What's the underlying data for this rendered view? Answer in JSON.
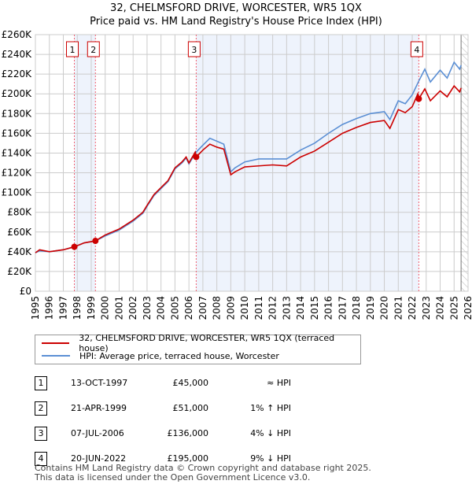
{
  "header": {
    "title": "32, CHELMSFORD DRIVE, WORCESTER, WR5 1QX",
    "subtitle": "Price paid vs. HM Land Registry's House Price Index (HPI)"
  },
  "chart_data": {
    "type": "line",
    "title": "32, CHELMSFORD DRIVE, WORCESTER, WR5 1QX",
    "subtitle": "Price paid vs. HM Land Registry's House Price Index (HPI)",
    "xlim": [
      1995,
      2026
    ],
    "ylim": [
      0,
      260000
    ],
    "grid": true,
    "x_ticks": [
      "1995",
      "1996",
      "1997",
      "1998",
      "1999",
      "2000",
      "2001",
      "2002",
      "2003",
      "2004",
      "2005",
      "2006",
      "2007",
      "2008",
      "2009",
      "2010",
      "2011",
      "2012",
      "2013",
      "2014",
      "2015",
      "2016",
      "2017",
      "2018",
      "2019",
      "2020",
      "2021",
      "2022",
      "2023",
      "2024",
      "2025",
      "2026"
    ],
    "y_ticks": [
      {
        "v": 0,
        "l": "£0"
      },
      {
        "v": 20000,
        "l": "£20K"
      },
      {
        "v": 40000,
        "l": "£40K"
      },
      {
        "v": 60000,
        "l": "£60K"
      },
      {
        "v": 80000,
        "l": "£80K"
      },
      {
        "v": 100000,
        "l": "£100K"
      },
      {
        "v": 120000,
        "l": "£120K"
      },
      {
        "v": 140000,
        "l": "£140K"
      },
      {
        "v": 160000,
        "l": "£160K"
      },
      {
        "v": 180000,
        "l": "£180K"
      },
      {
        "v": 200000,
        "l": "£200K"
      },
      {
        "v": 220000,
        "l": "£220K"
      },
      {
        "v": 240000,
        "l": "£240K"
      },
      {
        "v": 260000,
        "l": "£260K"
      }
    ],
    "series": [
      {
        "name": "32, CHELMSFORD DRIVE, WORCESTER, WR5 1QX (terraced house)",
        "color": "#cc0000",
        "x": [
          1995,
          1995.3,
          1996,
          1997,
          1997.79,
          1998.5,
          1999.3,
          2000,
          2001,
          2002,
          2002.7,
          2003,
          2003.5,
          2004,
          2004.5,
          2005,
          2005.5,
          2005.8,
          2006,
          2006.45,
          2006.52,
          2007,
          2007.5,
          2008,
          2008.5,
          2009,
          2009.3,
          2010,
          2011,
          2012,
          2013,
          2014,
          2015,
          2016,
          2017,
          2018,
          2019,
          2020,
          2020.4,
          2021,
          2021.5,
          2022,
          2022.4,
          2022.47,
          2022.9,
          2023.3,
          2024,
          2024.5,
          2025,
          2025.4,
          2025.5
        ],
        "y": [
          39000,
          42000,
          40000,
          42000,
          45000,
          49000,
          51000,
          57000,
          63000,
          72000,
          80000,
          87000,
          98000,
          105000,
          112000,
          125000,
          131000,
          136000,
          130000,
          141000,
          136000,
          143000,
          149000,
          146000,
          144000,
          118000,
          121000,
          126000,
          127000,
          128000,
          127000,
          136000,
          142000,
          151000,
          160000,
          166000,
          171000,
          173000,
          165000,
          184000,
          181000,
          187000,
          200000,
          195000,
          205000,
          193000,
          203000,
          197000,
          208000,
          202000,
          206000
        ]
      },
      {
        "name": "HPI: Average price, terraced house, Worcester",
        "color": "#5b8fd4",
        "x": [
          1995,
          1995.3,
          1996,
          1997,
          1997.79,
          1998.5,
          1999.3,
          2000,
          2001,
          2002,
          2002.7,
          2003,
          2003.5,
          2004,
          2004.5,
          2005,
          2005.5,
          2005.8,
          2006,
          2006.52,
          2007,
          2007.5,
          2008,
          2008.5,
          2009,
          2009.3,
          2010,
          2011,
          2012,
          2013,
          2014,
          2015,
          2016,
          2017,
          2018,
          2019,
          2020,
          2020.4,
          2021,
          2021.5,
          2022,
          2022.47,
          2022.9,
          2023.3,
          2024,
          2024.5,
          2025,
          2025.4,
          2025.5
        ],
        "y": [
          39000,
          41000,
          40000,
          42000,
          45000,
          49000,
          51000,
          56000,
          62000,
          71000,
          79000,
          86000,
          97000,
          104000,
          111000,
          124000,
          130000,
          135000,
          129000,
          141000,
          148000,
          155000,
          152000,
          149000,
          121000,
          125000,
          131000,
          134000,
          134000,
          134000,
          143000,
          150000,
          160000,
          169000,
          175000,
          180000,
          182000,
          174000,
          193000,
          190000,
          199000,
          213000,
          225000,
          212000,
          224000,
          216000,
          232000,
          225000,
          229000
        ]
      }
    ],
    "sales": [
      {
        "n": "1",
        "date": "13-OCT-1997",
        "x": 1997.79,
        "price": 45000,
        "price_label": "£45,000",
        "rel": "≈ HPI"
      },
      {
        "n": "2",
        "date": "21-APR-1999",
        "x": 1999.3,
        "price": 51000,
        "price_label": "£51,000",
        "rel": "1% ↑ HPI"
      },
      {
        "n": "3",
        "date": "07-JUL-2006",
        "x": 2006.52,
        "price": 136000,
        "price_label": "£136,000",
        "rel": "4% ↓ HPI"
      },
      {
        "n": "4",
        "date": "20-JUN-2022",
        "x": 2022.47,
        "price": 195000,
        "price_label": "£195,000",
        "rel": "9% ↓ HPI"
      }
    ],
    "data_end": 2025.5
  },
  "legend": {
    "price": "32, CHELMSFORD DRIVE, WORCESTER, WR5 1QX (terraced house)",
    "hpi": "HPI: Average price, terraced house, Worcester"
  },
  "footer": {
    "line1": "Contains HM Land Registry data © Crown copyright and database right 2025.",
    "line2": "This data is licensed under the Open Government Licence v3.0."
  }
}
